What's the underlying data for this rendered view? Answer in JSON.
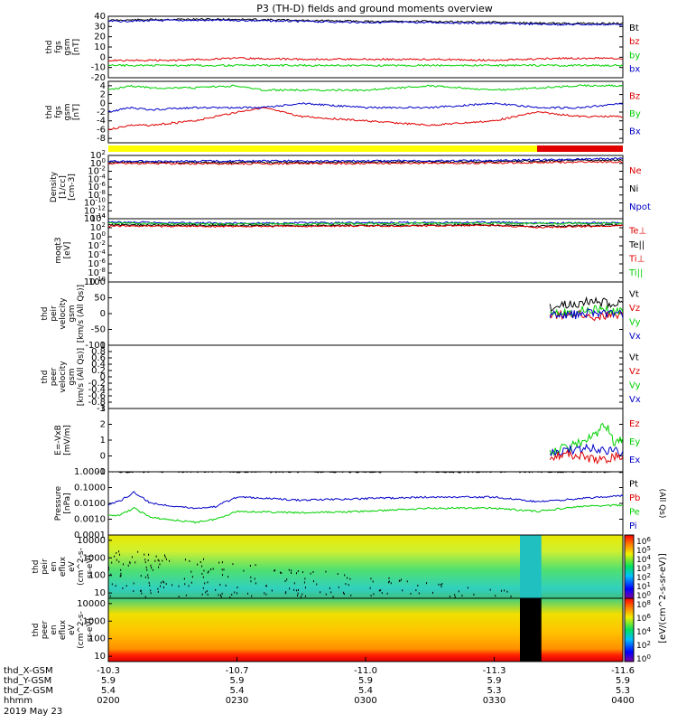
{
  "title": "P3 (TH-D) fields and ground moments overview",
  "colors": {
    "black": "#000000",
    "red": "#e00000",
    "green": "#00d000",
    "blue": "#0000c8",
    "yellow": "#ffff00",
    "bar_red": "#e00000"
  },
  "chart_data": [
    {
      "type": "line",
      "id": "fgs_gsm",
      "ylabel": [
        "thd",
        "fgs",
        "gsm",
        "[nT]"
      ],
      "ylim": [
        -20,
        40
      ],
      "ticks": [
        -20,
        -10,
        0,
        10,
        20,
        30,
        40
      ],
      "legend": [
        {
          "name": "Bt",
          "color": "#000000"
        },
        {
          "name": "bz",
          "color": "#e00000"
        },
        {
          "name": "by",
          "color": "#00d000"
        },
        {
          "name": "bx",
          "color": "#0000c8"
        }
      ],
      "series": [
        {
          "name": "Bt",
          "color": "#000000",
          "x": [
            0,
            15,
            30,
            45,
            60,
            75,
            90,
            105,
            120
          ],
          "y": [
            36,
            37,
            37,
            36,
            35,
            35,
            34,
            33,
            33
          ]
        },
        {
          "name": "bz",
          "color": "#e00000",
          "x": [
            0,
            15,
            30,
            45,
            60,
            75,
            90,
            105,
            120
          ],
          "y": [
            -3,
            -3,
            -1,
            -2,
            -2,
            -2,
            -3,
            -1,
            -1
          ]
        },
        {
          "name": "by",
          "color": "#00d000",
          "x": [
            0,
            15,
            30,
            45,
            60,
            75,
            90,
            105,
            120
          ],
          "y": [
            -8,
            -8,
            -8,
            -8,
            -8,
            -8,
            -8,
            -8,
            -8
          ]
        },
        {
          "name": "bx",
          "color": "#0000c8",
          "x": [
            0,
            15,
            30,
            45,
            60,
            75,
            90,
            105,
            120
          ],
          "y": [
            35,
            36,
            36,
            35,
            34,
            34,
            33,
            32,
            32
          ]
        }
      ]
    },
    {
      "type": "line",
      "id": "fgs_gse",
      "ylabel": [
        "thd",
        "fgs",
        "gsm",
        "[nT]"
      ],
      "ylim": [
        -9,
        5
      ],
      "ticks": [
        -8,
        -6,
        -4,
        -2,
        0,
        2,
        4
      ],
      "legend": [
        {
          "name": "Bz",
          "color": "#e00000"
        },
        {
          "name": "By",
          "color": "#00d000"
        },
        {
          "name": "Bx",
          "color": "#0000c8"
        }
      ],
      "series": [
        {
          "name": "Bz",
          "color": "#e00000",
          "x": [
            0,
            5,
            10,
            20,
            30,
            36,
            45,
            60,
            75,
            90,
            100,
            110,
            120
          ],
          "y": [
            -6,
            -5,
            -5,
            -4,
            -2,
            -1,
            -3,
            -4,
            -5,
            -4,
            -2,
            -3,
            -3
          ]
        },
        {
          "name": "By",
          "color": "#00d000",
          "x": [
            0,
            5,
            10,
            20,
            30,
            36,
            45,
            60,
            75,
            90,
            100,
            110,
            120
          ],
          "y": [
            3,
            4,
            3.5,
            3.5,
            4,
            3,
            3,
            3,
            4,
            3,
            3.5,
            4,
            4
          ]
        },
        {
          "name": "Bx",
          "color": "#0000c8",
          "x": [
            0,
            5,
            10,
            20,
            30,
            36,
            45,
            60,
            75,
            90,
            100,
            110,
            120
          ],
          "y": [
            -2,
            -1,
            -1.5,
            -1,
            -1,
            -1,
            0,
            -1,
            -1,
            0,
            -1,
            -1,
            0
          ]
        }
      ]
    },
    {
      "type": "line",
      "id": "density",
      "scale": "log",
      "ylabel": [
        "Density",
        "[1/cc]",
        "[cm-3]"
      ],
      "ylim_exp": [
        -14,
        2
      ],
      "tick_exps": [
        -14,
        -12,
        -10,
        -8,
        -6,
        -4,
        -2,
        0,
        2
      ],
      "legend": [
        {
          "name": "Ne",
          "color": "#e00000"
        },
        {
          "name": "Ni",
          "color": "#000000"
        },
        {
          "name": "Npot",
          "color": "#0000c8"
        }
      ],
      "series": [
        {
          "name": "Ni",
          "color": "#000000",
          "x": [
            0,
            30,
            60,
            90,
            100,
            120
          ],
          "y_exp": [
            0.3,
            0.2,
            0.3,
            0.4,
            0.6,
            0.8
          ]
        },
        {
          "name": "Ne",
          "color": "#e00000",
          "x": [
            0,
            30,
            60,
            90,
            100,
            120
          ],
          "y_exp": [
            0,
            -0.1,
            0,
            0.1,
            0.2,
            0.4
          ]
        },
        {
          "name": "Npot",
          "color": "#0000c8",
          "x": [
            0,
            30,
            60,
            90,
            100,
            120
          ],
          "y_exp": [
            0.5,
            0.6,
            0.6,
            0.7,
            0.9,
            1.2
          ]
        }
      ]
    },
    {
      "type": "line",
      "id": "temp",
      "scale": "log",
      "ylabel": [
        "moqt3",
        "[eV]"
      ],
      "ylim_exp": [
        -10,
        4
      ],
      "tick_exps": [
        -10,
        -8,
        -6,
        -4,
        -2,
        0,
        2,
        4
      ],
      "legend": [
        {
          "name": "Te⊥",
          "color": "#e00000"
        },
        {
          "name": "Te||",
          "color": "#000000"
        },
        {
          "name": "Ti⊥",
          "color": "#e00000"
        },
        {
          "name": "Ti||",
          "color": "#00d000"
        }
      ],
      "series": [
        {
          "name": "Ti",
          "color": "#0000c8",
          "x": [
            0,
            30,
            60,
            90,
            100,
            120
          ],
          "y_exp": [
            3.2,
            3.0,
            3.1,
            3.2,
            3.0,
            3.1
          ]
        },
        {
          "name": "Ti||",
          "color": "#00d000",
          "x": [
            0,
            30,
            60,
            90,
            100,
            120
          ],
          "y_exp": [
            3.0,
            2.8,
            2.9,
            3.0,
            2.9,
            3.0
          ]
        },
        {
          "name": "Te||",
          "color": "#000000",
          "x": [
            0,
            30,
            60,
            90,
            100,
            120
          ],
          "y_exp": [
            2.6,
            2.5,
            2.5,
            2.6,
            2.3,
            2.6
          ]
        },
        {
          "name": "Te⊥",
          "color": "#e00000",
          "x": [
            0,
            30,
            60,
            90,
            100,
            120
          ],
          "y_exp": [
            2.4,
            2.3,
            2.4,
            2.5,
            2.1,
            2.5
          ]
        }
      ]
    },
    {
      "type": "line",
      "id": "peir_velocity",
      "ylabel": [
        "thd",
        "peir",
        "velocity",
        "gsm",
        "[km/s (All Qs)]"
      ],
      "ylim": [
        -100,
        100
      ],
      "ticks": [
        -100,
        -50,
        0,
        50,
        100
      ],
      "legend": [
        {
          "name": "Vt",
          "color": "#000000"
        },
        {
          "name": "Vz",
          "color": "#e00000"
        },
        {
          "name": "Vy",
          "color": "#00d000"
        },
        {
          "name": "Vx",
          "color": "#0000c8"
        }
      ],
      "series": [
        {
          "name": "Vt",
          "color": "#000000",
          "x": [
            103,
            108,
            113,
            118,
            120
          ],
          "y": [
            20,
            30,
            40,
            30,
            35
          ]
        },
        {
          "name": "Vz",
          "color": "#e00000",
          "x": [
            103,
            108,
            113,
            118,
            120
          ],
          "y": [
            -5,
            0,
            -10,
            -5,
            0
          ]
        },
        {
          "name": "Vy",
          "color": "#00d000",
          "x": [
            103,
            108,
            113,
            118,
            120
          ],
          "y": [
            10,
            5,
            15,
            5,
            10
          ]
        },
        {
          "name": "Vx",
          "color": "#0000c8",
          "x": [
            103,
            108,
            113,
            118,
            120
          ],
          "y": [
            0,
            -5,
            5,
            0,
            -5
          ]
        }
      ]
    },
    {
      "type": "line",
      "id": "peer_velocity",
      "ylabel": [
        "thd",
        "peer",
        "velocity",
        "gsm",
        "[km/s (All Qs)]"
      ],
      "ylim": [
        -1,
        1
      ],
      "ticks": [
        -1.0,
        -0.8,
        -0.6,
        -0.4,
        -0.2,
        0.0,
        0.2,
        0.4,
        0.6,
        0.8,
        1.0
      ],
      "legend": [
        {
          "name": "Vt",
          "color": "#000000"
        },
        {
          "name": "Vz",
          "color": "#e00000"
        },
        {
          "name": "Vy",
          "color": "#00d000"
        },
        {
          "name": "Vx",
          "color": "#0000c8"
        }
      ],
      "series": []
    },
    {
      "type": "line",
      "id": "efield",
      "ylabel": [
        "E=-VxB",
        "[mV/m]"
      ],
      "ylim": [
        -1,
        3
      ],
      "ticks": [
        -1,
        0,
        1,
        2,
        3
      ],
      "legend": [
        {
          "name": "Ez",
          "color": "#e00000"
        },
        {
          "name": "Ey",
          "color": "#00d000"
        },
        {
          "name": "Ex",
          "color": "#0000c8"
        }
      ],
      "series": [
        {
          "name": "Ey",
          "color": "#00d000",
          "x": [
            103,
            108,
            113,
            116,
            118,
            120
          ],
          "y": [
            0.3,
            0.6,
            1.2,
            2.0,
            0.8,
            1.0
          ]
        },
        {
          "name": "Ex",
          "color": "#0000c8",
          "x": [
            103,
            108,
            113,
            116,
            118,
            120
          ],
          "y": [
            0.2,
            0.4,
            0.5,
            0.3,
            0.4,
            0.2
          ]
        },
        {
          "name": "Ez",
          "color": "#e00000",
          "x": [
            103,
            108,
            113,
            116,
            118,
            120
          ],
          "y": [
            0,
            0.1,
            -0.2,
            -0.3,
            0,
            -0.1
          ]
        }
      ]
    },
    {
      "type": "line",
      "id": "pressure",
      "scale": "log",
      "ylabel": [
        "Pressure",
        "[nPa]"
      ],
      "ylim_exp": [
        -4,
        0
      ],
      "tick_labels": [
        "0.0001",
        "0.0010",
        "0.0100",
        "0.1000",
        "1.0000"
      ],
      "legend": [
        {
          "name": "Pt",
          "color": "#000000"
        },
        {
          "name": "Pb",
          "color": "#e00000"
        },
        {
          "name": "Pe",
          "color": "#00d000"
        },
        {
          "name": "Pi",
          "color": "#0000c8"
        }
      ],
      "legend_note": "(All Qs)",
      "series": [
        {
          "name": "Pt",
          "color": "#000000",
          "x": [
            0,
            30,
            60,
            90,
            120
          ],
          "y_exp": [
            0.0,
            0.0,
            0.0,
            0.0,
            0.0
          ]
        },
        {
          "name": "Pi",
          "color": "#0000c8",
          "x": [
            0,
            3,
            6,
            10,
            20,
            25,
            30,
            45,
            60,
            75,
            90,
            100,
            110,
            120
          ],
          "y_exp": [
            -2.1,
            -1.8,
            -1.3,
            -2.0,
            -2.3,
            -2.2,
            -1.6,
            -1.8,
            -1.7,
            -1.6,
            -1.6,
            -1.9,
            -1.7,
            -1.5
          ]
        },
        {
          "name": "Pe",
          "color": "#00d000",
          "x": [
            0,
            3,
            6,
            10,
            20,
            25,
            30,
            45,
            60,
            75,
            90,
            100,
            110,
            120
          ],
          "y_exp": [
            -2.8,
            -2.7,
            -2.3,
            -2.9,
            -3.2,
            -3.0,
            -2.5,
            -2.6,
            -2.5,
            -2.3,
            -2.3,
            -2.5,
            -2.2,
            -2.1
          ]
        }
      ]
    },
    {
      "type": "heatmap",
      "id": "peir_eflux",
      "ylabel": [
        "thd",
        "peir",
        "en",
        "eflux",
        "eV",
        "(cm^2-s-",
        "sr-eV)"
      ],
      "ylim": [
        5,
        20000
      ],
      "tick_labels": [
        "10",
        "100",
        "1000",
        "10000"
      ]
    },
    {
      "type": "heatmap",
      "id": "peer_eflux",
      "ylabel": [
        "thd",
        "peer",
        "en",
        "eflux",
        "eV",
        "(cm^2-s-",
        "sr-eV)"
      ],
      "ylim": [
        5,
        20000
      ],
      "tick_labels": [
        "10",
        "100",
        "1000",
        "10000"
      ]
    }
  ],
  "quality_bar": {
    "segments": [
      {
        "x0": 0,
        "x1": 100,
        "color": "#ffff00"
      },
      {
        "x0": 100,
        "x1": 120,
        "color": "#e00000"
      }
    ]
  },
  "colorbar": {
    "label": "[eV/(cm^2-s-sr-eV)]",
    "tick_labels_upper": [
      "10^6",
      "10^5",
      "10^4",
      "10^3",
      "10^2",
      "10^1",
      "10^0"
    ],
    "tick_labels_lower": [
      "10^8",
      "10^6",
      "10^4",
      "10^2",
      "10^0"
    ]
  },
  "xaxis": {
    "x_minutes": [
      0,
      30,
      60,
      90,
      120
    ],
    "rows": [
      {
        "label": "thd_X-GSM",
        "values": [
          "-10.3",
          "-10.7",
          "-11.0",
          "-11.3",
          "-11.6"
        ]
      },
      {
        "label": "thd_Y-GSM",
        "values": [
          "5.9",
          "5.9",
          "5.9",
          "5.9",
          "5.9"
        ]
      },
      {
        "label": "thd_Z-GSM",
        "values": [
          "5.4",
          "5.4",
          "5.4",
          "5.3",
          "5.3"
        ]
      },
      {
        "label": "hhmm",
        "values": [
          "0200",
          "0230",
          "0300",
          "0330",
          "0400"
        ]
      }
    ],
    "date": "2019 May 23"
  }
}
